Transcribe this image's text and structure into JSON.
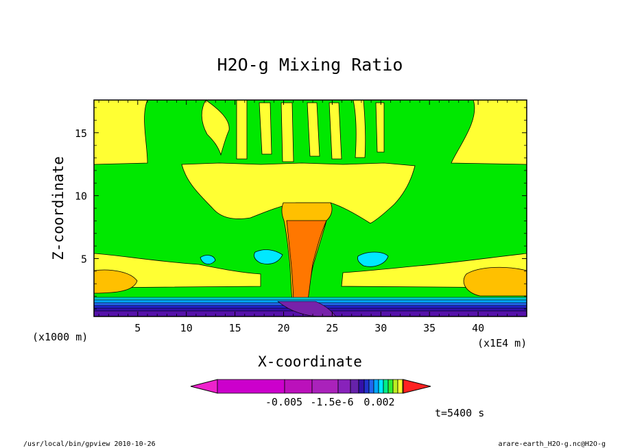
{
  "chart_data": {
    "type": "heatmap",
    "title": "H2O-g Mixing Ratio",
    "xlabel": "X-coordinate",
    "ylabel": "Z-coordinate",
    "x_unit": "(x1E4 m)",
    "y_unit": "(x1000 m)",
    "x_ticks": [
      "5",
      "10",
      "15",
      "20",
      "25",
      "30",
      "35",
      "40"
    ],
    "y_ticks": [
      "5",
      "10",
      "15"
    ],
    "xlim": [
      0.5,
      45
    ],
    "ylim": [
      0.4,
      17.6
    ],
    "colorbar": {
      "tick_labels": [
        "-0.005",
        "-1.5e-6",
        "0.002"
      ],
      "colors": [
        "#cc00cc",
        "#bb11bb",
        "#aa22bb",
        "#8822bb",
        "#6622aa",
        "#3311aa",
        "#2233cc",
        "#2266ee",
        "#00a8ff",
        "#00e8ff",
        "#00ee88",
        "#33ee33",
        "#bbee22",
        "#ffff33",
        "#ffdd22",
        "#ffbb11",
        "#ff9900",
        "#ff7700",
        "#ff2222"
      ]
    },
    "field_colors": {
      "background": "#00e800",
      "upper_yellow": "#ffff33",
      "lower_orange": "#ffc000",
      "plume": "#ff7700",
      "cyan": "#00e8ff",
      "blue": "#2222cc",
      "purple": "#5511aa"
    },
    "time_label": "t=5400 s"
  },
  "footer": {
    "left": "/usr/local/bin/gpview  2010-10-26",
    "right": "arare-earth_H2O-g.nc@H2O-g"
  }
}
